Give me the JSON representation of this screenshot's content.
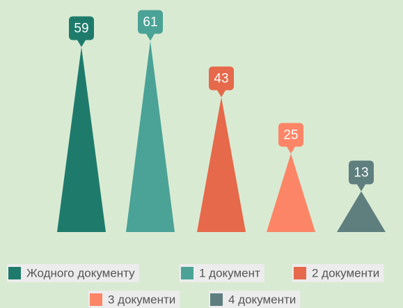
{
  "chart_data": {
    "type": "triangle-bar",
    "categories": [
      "Жодного документу",
      "1 документ",
      "2 документи",
      "3 документи",
      "4 документи"
    ],
    "values": [
      59,
      61,
      43,
      25,
      13
    ],
    "colors": [
      "#1e7b6c",
      "#4aa396",
      "#e5694a",
      "#fb8566",
      "#5f7f7f"
    ]
  }
}
